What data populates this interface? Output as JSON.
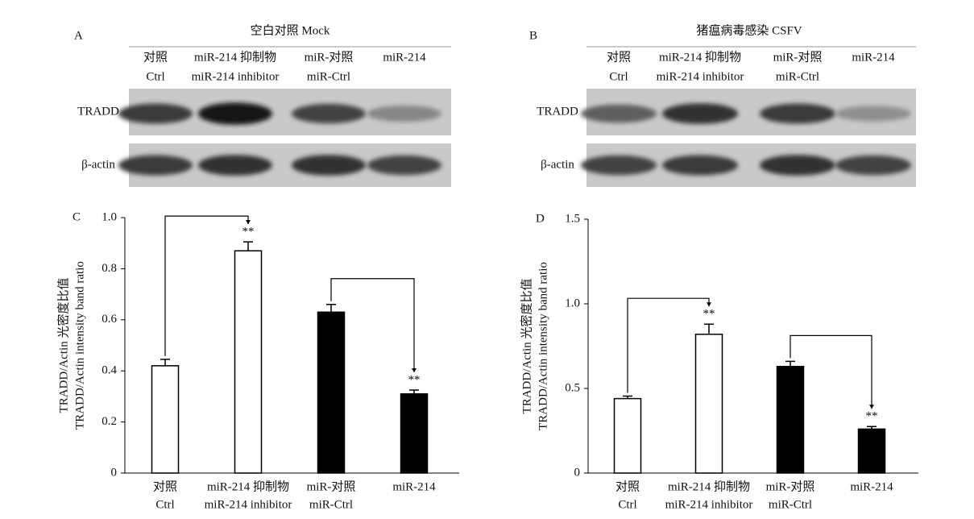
{
  "blots": [
    {
      "label": "A",
      "title": "空白对照 Mock",
      "lanes": [
        {
          "zh": "对照",
          "en": "Ctrl"
        },
        {
          "zh": "miR-214 抑制物",
          "en": "miR-214 inhibitor"
        },
        {
          "zh": "miR-对照",
          "en": "miR-Ctrl"
        },
        {
          "zh": "miR-214"
        }
      ],
      "rows": [
        "TRADD",
        "β-actin"
      ]
    },
    {
      "label": "B",
      "title": "猪瘟病毒感染 CSFV",
      "lanes": [
        {
          "zh": "对照",
          "en": "Ctrl"
        },
        {
          "zh": "miR-214 抑制物",
          "en": "miR-214 inhibitor"
        },
        {
          "zh": "miR-对照",
          "en": "miR-Ctrl"
        },
        {
          "zh": "miR-214"
        }
      ],
      "rows": [
        "TRADD",
        "β-actin"
      ]
    }
  ],
  "chart_data": [
    {
      "type": "bar",
      "label": "C",
      "ylabel": [
        "TRADD/Actin 光密度比值",
        "TRADD/Actin intensity band ratio"
      ],
      "categories": [
        "对照",
        "miR-214 抑制物",
        "miR-对照",
        "miR-214"
      ],
      "category_subtitles": [
        "Ctrl",
        "miR-214 inhibitor",
        "miR-Ctrl",
        null
      ],
      "values": [
        0.42,
        0.87,
        0.63,
        0.31
      ],
      "errors": [
        0.025,
        0.035,
        0.03,
        0.015
      ],
      "colors": [
        "#ffffff",
        "#ffffff",
        "#000000",
        "#000000"
      ],
      "annotations": [
        {
          "index": 1,
          "text": "**"
        },
        {
          "index": 3,
          "text": "**"
        }
      ],
      "comparisons": [
        [
          0,
          1
        ],
        [
          2,
          3
        ]
      ],
      "ylim": [
        0,
        1
      ],
      "yticks": [
        0,
        0.2,
        0.4,
        0.6,
        0.8,
        {
          "value": 1,
          "label": "1.0"
        }
      ]
    },
    {
      "type": "bar",
      "label": "D",
      "ylabel": [
        "TRADD/Actin 光密度比值",
        "TRADD/Actin intensity band ratio"
      ],
      "categories": [
        "对照",
        "miR-214 抑制物",
        "miR-对照",
        "miR-214"
      ],
      "category_subtitles": [
        "Ctrl",
        "miR-214 inhibitor",
        "miR-Ctrl",
        null
      ],
      "values": [
        0.44,
        0.82,
        0.63,
        0.26
      ],
      "errors": [
        0.015,
        0.06,
        0.03,
        0.015
      ],
      "colors": [
        "#ffffff",
        "#ffffff",
        "#000000",
        "#000000"
      ],
      "annotations": [
        {
          "index": 1,
          "text": "**"
        },
        {
          "index": 3,
          "text": "**"
        }
      ],
      "comparisons": [
        [
          0,
          1
        ],
        [
          2,
          3
        ]
      ],
      "ylim": [
        0,
        1.5
      ],
      "yticks": [
        0,
        0.5,
        {
          "value": 1,
          "label": "1.0"
        },
        1.5
      ]
    }
  ]
}
